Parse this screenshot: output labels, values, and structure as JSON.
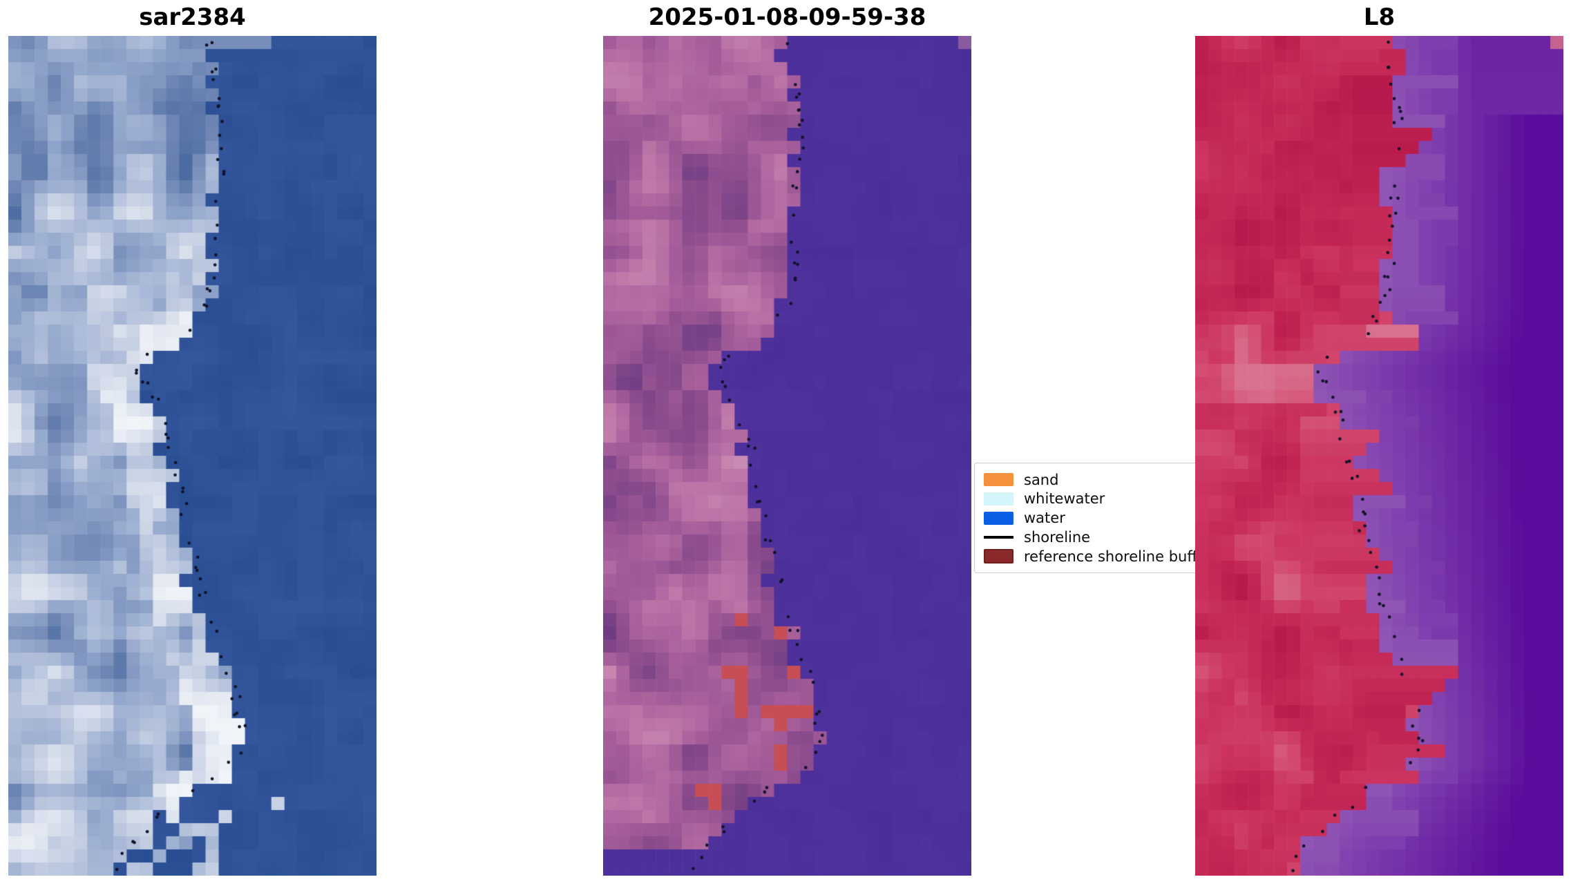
{
  "figure": {
    "background": "#ffffff",
    "title_color": "#000000"
  },
  "panels": [
    {
      "title": "sar2384",
      "type": "sar",
      "water_colors": [
        "#294d92",
        "#3d5ea6"
      ],
      "water_light": "#7d94c0",
      "land_palette": [
        "#4c6ba1",
        "#7188b5",
        "#93a7cc",
        "#b6c3dc",
        "#d8dfec",
        "#f0f3f8"
      ],
      "boundary_offset": 0.0
    },
    {
      "title": "2025-01-08-09-59-38",
      "type": "class",
      "water_colors": [
        "#4c2e9a",
        "#563aa2"
      ],
      "corner_light": "#8a5a9e",
      "land_palette": [
        "#6e3c82",
        "#8d4d8e",
        "#a75f9b",
        "#bd77a8",
        "#cb8fb5"
      ],
      "red_patch": "#c64e54",
      "bottom_dark": "#4a2a60",
      "boundary_offset": -0.045
    },
    {
      "title": "L8",
      "type": "l8",
      "water_colors": [
        "#9055b5",
        "#5a0c9c"
      ],
      "water_patch": "#a86fc0",
      "water_dark": "#4f0795",
      "corner_light": "#c4638f",
      "land_palette": [
        "#b5164a",
        "#c22553",
        "#cb335e",
        "#d34a6e",
        "#d8718f"
      ],
      "shore_mauve": [
        "#c36f9c",
        "#b164a4"
      ],
      "boundary_offset": -0.03
    }
  ],
  "legend": {
    "items": [
      {
        "label": "sand",
        "swatch": "#f5913d",
        "kind": "patch"
      },
      {
        "label": "whitewater",
        "swatch": "#d2f6fa",
        "kind": "patch"
      },
      {
        "label": "water",
        "swatch": "#0b5fe5",
        "kind": "patch"
      },
      {
        "label": "shoreline",
        "swatch": "#000000",
        "kind": "line"
      },
      {
        "label": "reference shoreline buffer",
        "swatch": "#8b2a2a",
        "kind": "patch-bordered"
      }
    ]
  },
  "shoreline": {
    "dot_color": "#101228",
    "boundary": [
      [
        0,
        0.53
      ],
      [
        3,
        0.55
      ],
      [
        6,
        0.565
      ],
      [
        9,
        0.565
      ],
      [
        12,
        0.555
      ],
      [
        15,
        0.55
      ],
      [
        18,
        0.545
      ],
      [
        21,
        0.525
      ],
      [
        23,
        0.46
      ],
      [
        24,
        0.39
      ],
      [
        25,
        0.345
      ],
      [
        26,
        0.345
      ],
      [
        27,
        0.375
      ],
      [
        28,
        0.395
      ],
      [
        30,
        0.415
      ],
      [
        32,
        0.435
      ],
      [
        35,
        0.455
      ],
      [
        38,
        0.475
      ],
      [
        41,
        0.5
      ],
      [
        44,
        0.53
      ],
      [
        47,
        0.565
      ],
      [
        50,
        0.6
      ],
      [
        52,
        0.615
      ],
      [
        54,
        0.625
      ],
      [
        55,
        0.615
      ],
      [
        56,
        0.57
      ],
      [
        57,
        0.5
      ],
      [
        58,
        0.46
      ],
      [
        59,
        0.42
      ],
      [
        60,
        0.38
      ],
      [
        61,
        0.335
      ],
      [
        62,
        0.3
      ],
      [
        64,
        0.275
      ]
    ]
  },
  "chart_data": {
    "type": "heatmap",
    "subtype": "satellite-image-panels",
    "panels": [
      {
        "title": "sar2384",
        "description": "pixelated SAR backscatter image: bright blue-white land on left, dark blue water on right, dotted black shoreline overlay"
      },
      {
        "title": "2025-01-08-09-59-38",
        "description": "pixelated classified image: mottled magenta-purple land on left, flat purple water on right, brick-red patches near lower shoreline, dotted black shoreline overlay"
      },
      {
        "title": "L8",
        "description": "pixelated Landsat-8 false-colour image: crimson-red land on left, purple water gradient on right with mauve nearshore band, dotted black shoreline overlay"
      }
    ],
    "legend_position": "between middle and right panels, vertically centered, clipped on the right by the L8 panel",
    "legend_entries": [
      "sand",
      "whitewater",
      "water",
      "shoreline",
      "reference shoreline buffer"
    ]
  }
}
